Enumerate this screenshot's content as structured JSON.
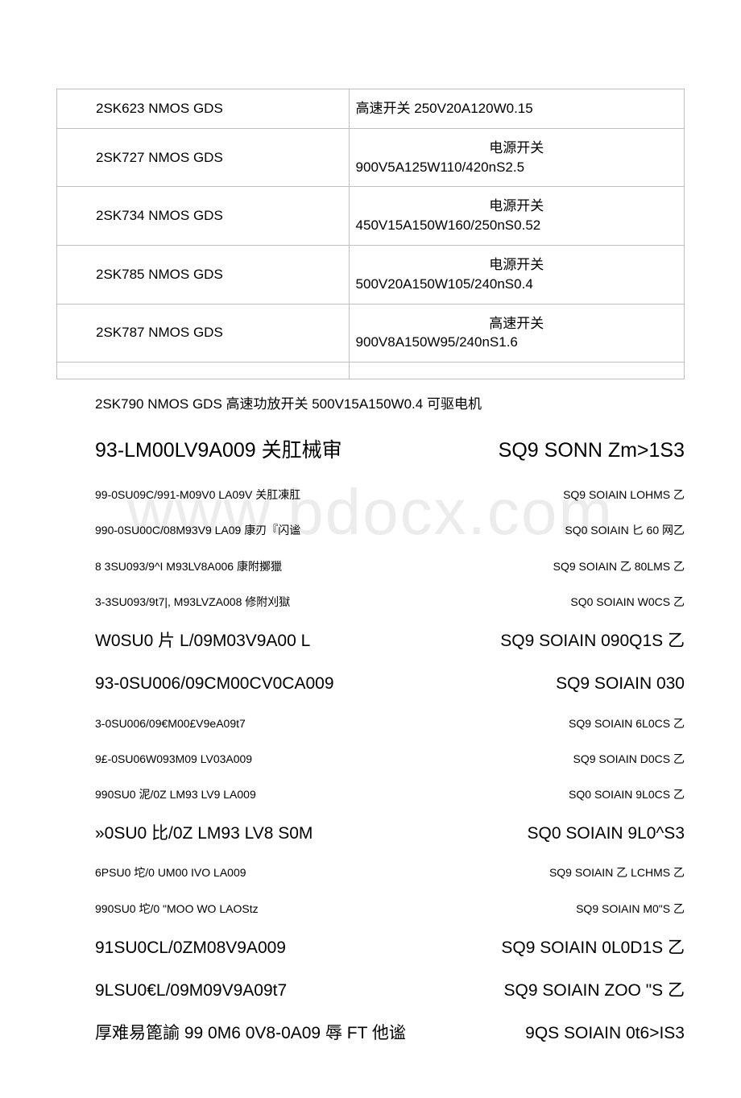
{
  "watermark": "www.bdocx.com",
  "table": {
    "rows": [
      {
        "left": "2SK623 NMOS GDS",
        "right": "高速开关 250V20A120W0.15"
      },
      {
        "left": "2SK727 NMOS GDS",
        "right": "电源开关\n900V5A125W110/420nS2.5"
      },
      {
        "left": "2SK734 NMOS GDS",
        "right": "电源开关\n450V15A150W160/250nS0.52"
      },
      {
        "left": "2SK785 NMOS GDS",
        "right": "电源开关\n500V20A150W105/240nS0.4"
      },
      {
        "left": "2SK787 NMOS GDS",
        "right": "高速开关\n900V8A150W95/240nS1.6"
      },
      {
        "left": "",
        "right": ""
      }
    ]
  },
  "below_table": "2SK790 NMOS GDS 高速功放开关 500V15A150W0.4 可驱电机",
  "lines": [
    {
      "size": "large",
      "left": "93-LM00LV9A009 关肛械审",
      "right": "SQ9 SONN Zm>1S3"
    },
    {
      "size": "small",
      "left": "99-0SU09C/991-M09V0 LA09V 关肛凍肛",
      "right": "SQ9 SOIAIN LOHMS 乙"
    },
    {
      "size": "small",
      "left": "990-0SU00C/08M93V9 LA09 康刃『闪谧",
      "right": "SQ0 SOIAIN 匕 60 网乙"
    },
    {
      "size": "small",
      "left": "8 3SU093/9^I M93LV8A006 康附擲獵",
      "right": "SQ9 SOIAIN 乙 80LMS 乙"
    },
    {
      "size": "small",
      "left": "3-3SU093/9t7|, M93LVZA008 修附刈獄",
      "right": "SQ0 SOIAIN W0CS 乙"
    },
    {
      "size": "medium",
      "left": "W0SU0 片  L/09M03V9A00 L",
      "right": "SQ9 SOIAIN 090Q1S 乙"
    },
    {
      "size": "medium",
      "left": "93-0SU006/09CM00CV0CA009",
      "right": "SQ9 SOIAIN 030"
    },
    {
      "size": "small",
      "left": "3-0SU006/09€M00£V9eA09t7",
      "right": "SQ9 SOIAIN 6L0CS 乙"
    },
    {
      "size": "small",
      "left": "9£-0SU06W093M09 LV03A009",
      "right": "SQ9 SOIAIN D0CS 乙"
    },
    {
      "size": "small",
      "left": "990SU0 泥/0Z LM93 LV9 LA009",
      "right": "SQ0 SOIAIN 9L0CS 乙"
    },
    {
      "size": "medium",
      "left": "»0SU0 比/0Z LM93 LV8 S0M",
      "right": "SQ0 SOIAIN 9L0^S3"
    },
    {
      "size": "small",
      "left": "6PSU0 坨/0 UM00 IVO LA009",
      "right": "SQ9 SOIAIN 乙 LCHMS 乙"
    },
    {
      "size": "small",
      "left": "990SU0 坨/0 \"MOO WO LAOStz",
      "right": "SQ9 SOIAIN M0\"S 乙"
    },
    {
      "size": "medium",
      "left": "91SU0CL/0ZM08V9A009",
      "right": "SQ9 SOIAIN 0L0D1S 乙"
    },
    {
      "size": "medium",
      "left": "9LSU0€L/09M09V9A09t7",
      "right": "SQ9 SOIAIN ZOO \"S 乙"
    },
    {
      "size": "medium",
      "left": "厚难易篦諭 99 0M6 0V8-0A09 辱 FT 他谧",
      "right": "9QS SOIAIN 0t6>IS3"
    }
  ]
}
